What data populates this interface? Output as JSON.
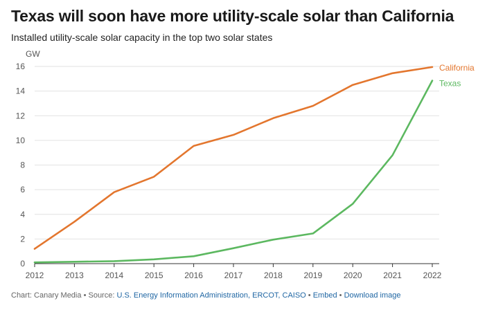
{
  "chart_data": {
    "type": "line",
    "title": "Texas will soon have more utility-scale solar than California",
    "subtitle": "Installed utility-scale solar capacity in the top two solar states",
    "ylabel": "GW",
    "xlabel": "",
    "x": [
      "2012",
      "2013",
      "2014",
      "2015",
      "2016",
      "2017",
      "2018",
      "2019",
      "2020",
      "2021",
      "2022"
    ],
    "ylim": [
      0,
      16
    ],
    "yticks": [
      0,
      2,
      4,
      6,
      8,
      10,
      12,
      14,
      16
    ],
    "grid": true,
    "series": [
      {
        "name": "California",
        "color": "#e3762e",
        "values": [
          1.2,
          3.4,
          5.8,
          7.05,
          9.55,
          10.45,
          11.8,
          12.8,
          14.5,
          15.45,
          15.95
        ]
      },
      {
        "name": "Texas",
        "color": "#5cb860",
        "values": [
          0.1,
          0.15,
          0.2,
          0.35,
          0.6,
          1.25,
          1.95,
          2.45,
          4.85,
          8.8,
          14.85
        ]
      }
    ]
  },
  "footer": {
    "credit": "Chart: Canary Media",
    "source_prefix": "Source:",
    "sources": "U.S. Energy Information Administration, ERCOT, CAISO",
    "embed": "Embed",
    "download": "Download image",
    "separator": "•"
  }
}
